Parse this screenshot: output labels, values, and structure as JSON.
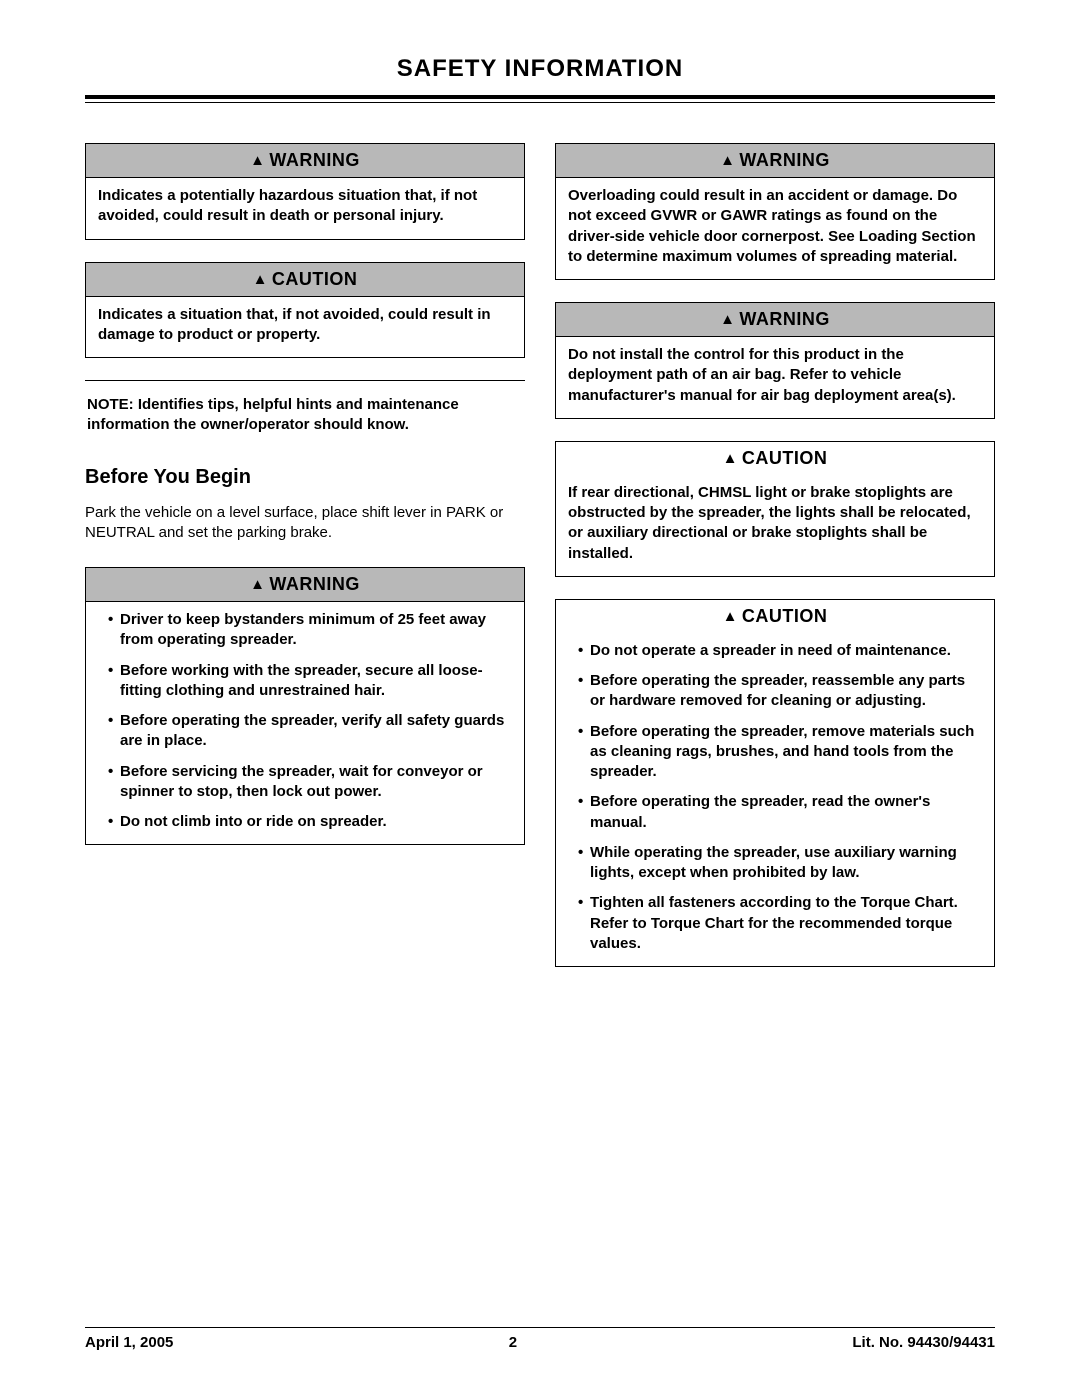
{
  "page_title": "SAFETY  INFORMATION",
  "left": {
    "warning1": {
      "label": "WARNING",
      "text": "Indicates a potentially hazardous situation that, if not avoided, could result in death or personal injury."
    },
    "caution1": {
      "label": "CAUTION",
      "text": "Indicates a situation that, if not avoided, could result in damage to product or property."
    },
    "note": "NOTE: Identifies tips, helpful hints and maintenance information the owner/operator should know.",
    "before_heading": "Before You Begin",
    "before_text": "Park the vehicle on a level surface, place shift lever in PARK or NEUTRAL and set the parking brake.",
    "warning2": {
      "label": "WARNING",
      "items": [
        "Driver to keep bystanders minimum of 25 feet away from operating spreader.",
        "Before working with the spreader, secure all loose-fitting clothing and unrestrained hair.",
        "Before operating the spreader, verify all safety guards are in place.",
        "Before servicing the spreader, wait for conveyor or spinner to stop, then lock out power.",
        "Do not climb into or ride on spreader."
      ]
    }
  },
  "right": {
    "warning1": {
      "label": "WARNING",
      "text": "Overloading could result in an accident or damage.  Do not exceed GVWR or GAWR ratings as found on the driver-side vehicle door cornerpost.  See Loading Section to determine maximum volumes of spreading material."
    },
    "warning2": {
      "label": "WARNING",
      "text": "Do not install the control for this product in the deployment path of an air bag. Refer to vehicle manufacturer's manual for air bag deployment area(s)."
    },
    "caution1": {
      "label": "CAUTION",
      "text": "If rear directional, CHMSL light or brake stoplights are obstructed by the spreader, the lights shall be relocated, or auxiliary directional or brake stoplights shall be installed."
    },
    "caution2": {
      "label": "CAUTION",
      "items": [
        "Do not operate a spreader in need of maintenance.",
        "Before operating the spreader, reassemble any parts or hardware removed for cleaning or adjusting.",
        "Before operating the spreader, remove materials such as cleaning rags, brushes, and hand tools from the spreader.",
        "Before operating the spreader, read the owner's manual.",
        "While operating the spreader, use auxiliary warning lights, except when prohibited by law.",
        "Tighten all fasteners according to the Torque Chart.  Refer to Torque Chart for the recommended torque values."
      ]
    }
  },
  "footer": {
    "date": "April 1, 2005",
    "page": "2",
    "lit": "Lit. No. 94430/94431"
  }
}
